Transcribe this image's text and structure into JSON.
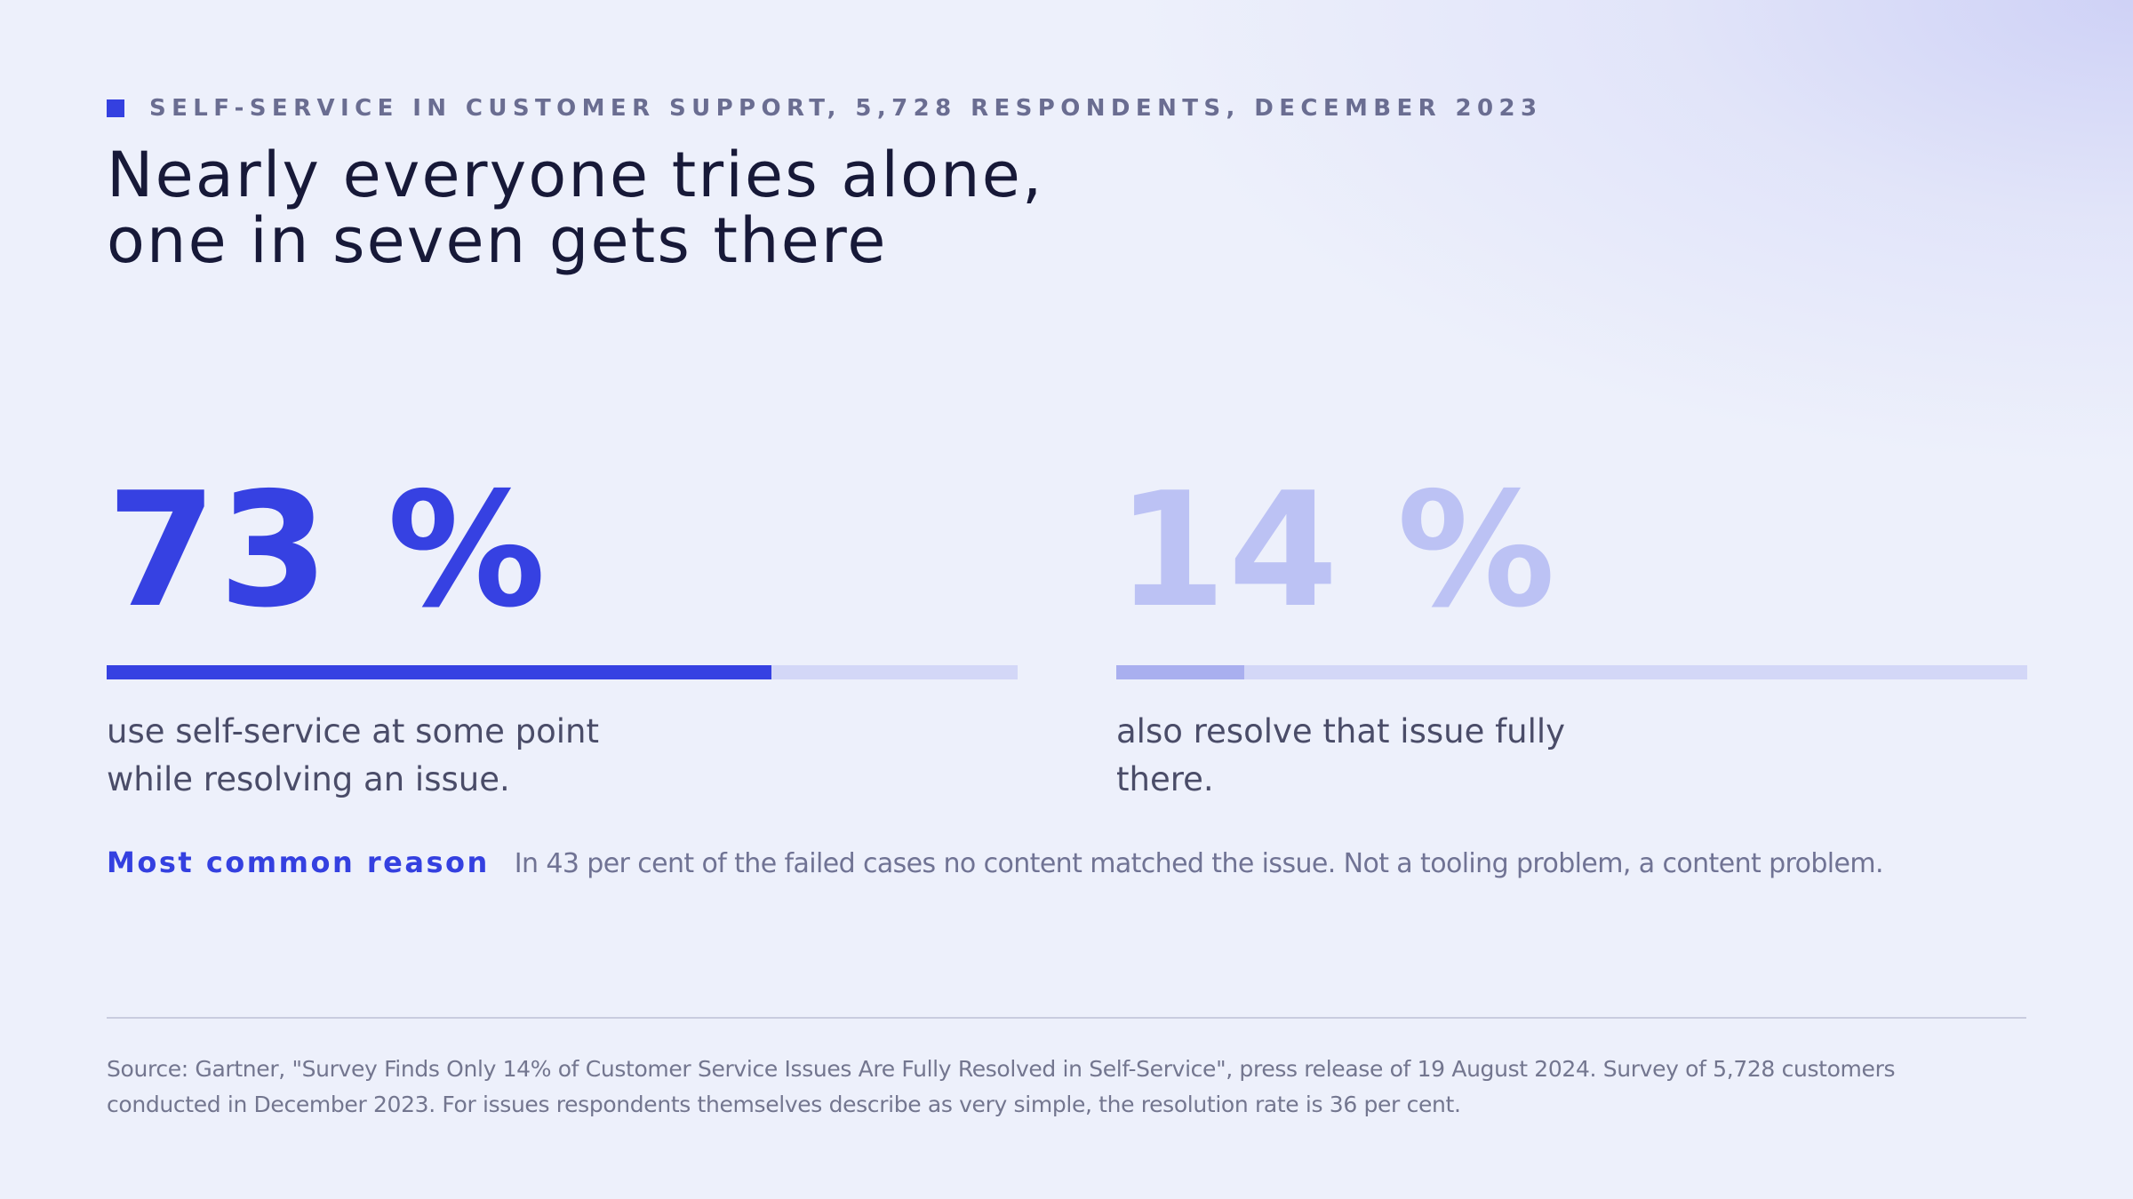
{
  "eyebrow": {
    "text": "SELF-SERVICE IN CUSTOMER SUPPORT, 5,728 RESPONDENTS, DECEMBER 2023",
    "marker_color": "#3440e0"
  },
  "headline": {
    "line1": "Nearly everyone tries alone,",
    "line2": "one in seven gets there"
  },
  "stats": [
    {
      "value_label": "73 %",
      "value": 73,
      "caption_line1": "use self-service at some point",
      "caption_line2": "while resolving an issue.",
      "color": "#3641e2"
    },
    {
      "value_label": "14 %",
      "value": 14,
      "caption_line1": "also resolve that issue fully",
      "caption_line2": "there.",
      "color": "#bcc2f4"
    }
  ],
  "reason": {
    "label": "Most common reason",
    "text": "In 43 per cent of the failed cases no content matched the issue. Not a tooling problem, a content problem."
  },
  "source": {
    "line1": "Source: Gartner, \"Survey Finds Only 14% of Customer Service Issues Are Fully Resolved in Self-Service\", press release of 19 August 2024. Survey of 5,728 customers",
    "line2": "conducted in December 2023. For issues respondents themselves describe as very simple, the resolution rate is 36 per cent."
  },
  "colors": {
    "accent": "#3641e2",
    "accent_muted": "#bcc2f4",
    "track": "#d3d7f7",
    "background": "#edf0fb"
  }
}
